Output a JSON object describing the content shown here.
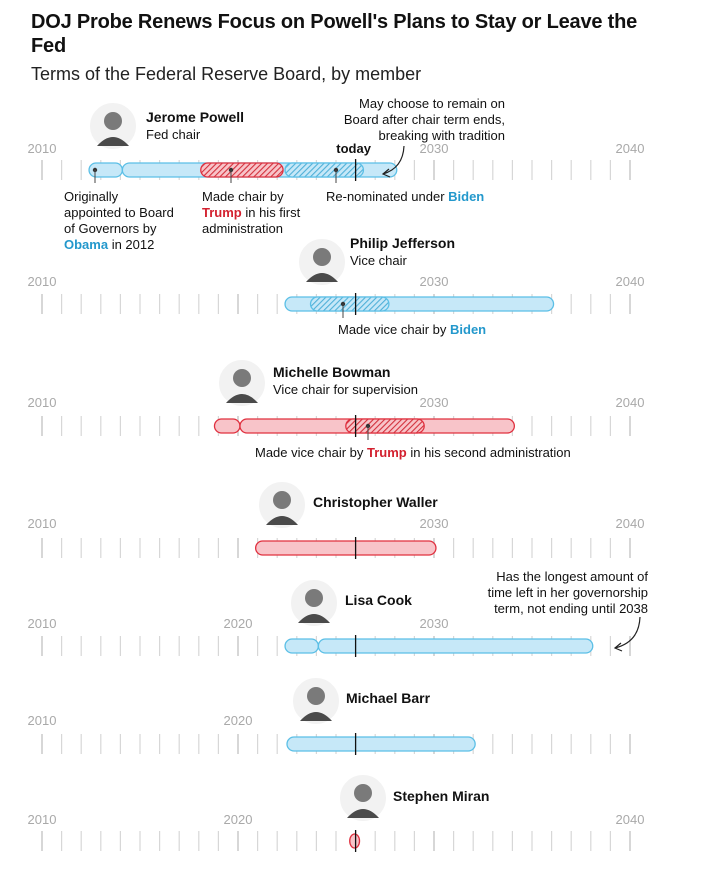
{
  "title": "DOJ Probe Renews Focus on Powell's Plans to Stay or Leave the Fed",
  "subtitle": "Terms of the Federal Reserve Board, by member",
  "colors": {
    "democrat_fill": "#c6e8f8",
    "democrat_stroke": "#5bbfe6",
    "democrat_hatch": "#4fb0d8",
    "republican_fill": "#f8c4c9",
    "republican_stroke": "#e0303f",
    "republican_hatch": "#d2313c",
    "biden_text": "#2398cc",
    "obama_text": "#2398cc",
    "trump_text": "#d3212f",
    "tick": "#d7d7d7",
    "today_line": "#111111"
  },
  "chart_data": {
    "type": "timeline",
    "today": 2026.0,
    "today_label": "today",
    "x_range": [
      2010,
      2040
    ],
    "members": [
      {
        "name": "Jerome Powell",
        "role": "Fed chair",
        "axis_labels": [
          "2010",
          "2030",
          "2040"
        ],
        "segments": [
          {
            "start": 2012.4,
            "end": 2014.1,
            "party": "D",
            "hatched": false
          },
          {
            "start": 2014.1,
            "end": 2028.1,
            "party": "D",
            "hatched": false
          },
          {
            "start": 2018.1,
            "end": 2022.3,
            "party": "R",
            "hatched": true
          },
          {
            "start": 2022.4,
            "end": 2026.4,
            "party": "D",
            "hatched": true
          }
        ],
        "annotations": [
          {
            "parts": [
              {
                "text": "Originally"
              },
              {
                "text": "appointed to Board",
                "newline": true
              },
              {
                "text": "of Governors by",
                "newline": true
              },
              {
                "text": "Obama",
                "color": "obama",
                "newline": true
              },
              {
                "text": " in 2012"
              }
            ]
          },
          {
            "parts": [
              {
                "text": "Made chair by"
              },
              {
                "text": "Trump",
                "color": "trump",
                "newline": true
              },
              {
                "text": " in his first"
              },
              {
                "text": "administration",
                "newline": true
              }
            ]
          },
          {
            "parts": [
              {
                "text": "Re-nominated under "
              },
              {
                "text": "Biden",
                "color": "biden"
              }
            ]
          },
          {
            "parts": [
              {
                "text": "May choose to remain on"
              },
              {
                "text": "Board after chair term ends,",
                "newline": true
              },
              {
                "text": "breaking with tradition",
                "newline": true
              }
            ]
          }
        ]
      },
      {
        "name": "Philip Jefferson",
        "role": "Vice chair",
        "axis_labels": [
          "2010",
          "2030",
          "2040"
        ],
        "segments": [
          {
            "start": 2022.4,
            "end": 2036.1,
            "party": "D",
            "hatched": false
          },
          {
            "start": 2023.7,
            "end": 2027.7,
            "party": "D",
            "hatched": true
          }
        ],
        "annotations": [
          {
            "parts": [
              {
                "text": "Made vice chair by "
              },
              {
                "text": "Biden",
                "color": "biden"
              }
            ]
          }
        ]
      },
      {
        "name": "Michelle Bowman",
        "role": "Vice chair for supervision",
        "axis_labels": [
          "2010",
          "2030",
          "2040"
        ],
        "segments": [
          {
            "start": 2018.8,
            "end": 2020.1,
            "party": "R",
            "hatched": false
          },
          {
            "start": 2020.1,
            "end": 2034.1,
            "party": "R",
            "hatched": false
          },
          {
            "start": 2025.5,
            "end": 2029.5,
            "party": "R",
            "hatched": true
          }
        ],
        "annotations": [
          {
            "parts": [
              {
                "text": "Made vice chair by "
              },
              {
                "text": "Trump",
                "color": "trump"
              },
              {
                "text": " in his second administration"
              }
            ]
          }
        ]
      },
      {
        "name": "Christopher Waller",
        "role": "",
        "axis_labels": [
          "2010",
          "2030",
          "2040"
        ],
        "segments": [
          {
            "start": 2020.9,
            "end": 2030.1,
            "party": "R",
            "hatched": false
          }
        ],
        "annotations": []
      },
      {
        "name": "Lisa Cook",
        "role": "",
        "axis_labels": [
          "2010",
          "2020",
          "2030"
        ],
        "segments": [
          {
            "start": 2022.4,
            "end": 2024.1,
            "party": "D",
            "hatched": false
          },
          {
            "start": 2024.1,
            "end": 2038.1,
            "party": "D",
            "hatched": false
          }
        ],
        "annotations": [
          {
            "parts": [
              {
                "text": "Has the longest amount of"
              },
              {
                "text": "time left in her governorship",
                "newline": true
              },
              {
                "text": "term, not ending until 2038",
                "newline": true
              }
            ]
          }
        ]
      },
      {
        "name": "Michael Barr",
        "role": "",
        "axis_labels": [
          "2010",
          "2020"
        ],
        "segments": [
          {
            "start": 2022.5,
            "end": 2032.1,
            "party": "D",
            "hatched": false
          }
        ],
        "annotations": []
      },
      {
        "name": "Stephen Miran",
        "role": "",
        "axis_labels": [
          "2010",
          "2020",
          "2040"
        ],
        "segments": [
          {
            "start": 2025.7,
            "end": 2026.2,
            "party": "R",
            "hatched": false
          }
        ],
        "annotations": []
      }
    ]
  }
}
